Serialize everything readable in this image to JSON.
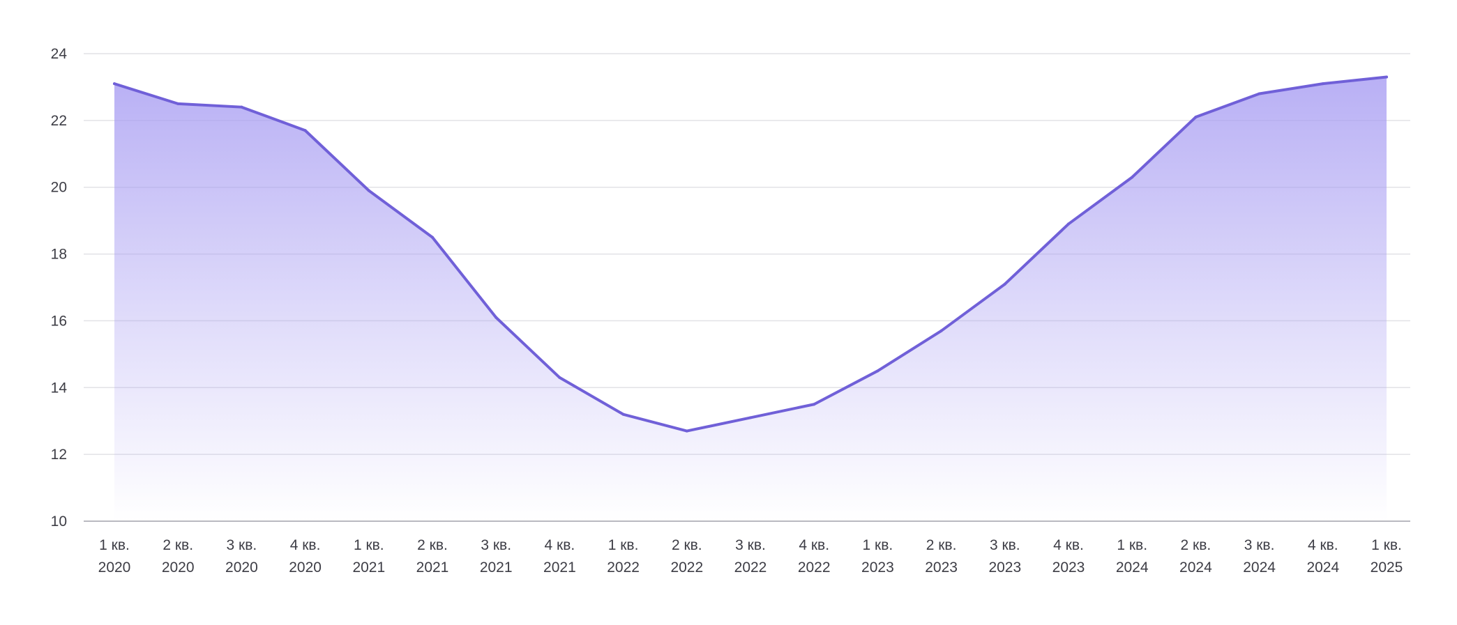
{
  "chart_data": {
    "type": "area",
    "title": "",
    "xlabel": "",
    "ylabel": "",
    "ylim": [
      10,
      24
    ],
    "yticks": [
      10,
      12,
      14,
      16,
      18,
      20,
      22,
      24
    ],
    "grid": true,
    "legend": "none",
    "categories": [
      {
        "quarter": "1 кв.",
        "year": "2020"
      },
      {
        "quarter": "2 кв.",
        "year": "2020"
      },
      {
        "quarter": "3 кв.",
        "year": "2020"
      },
      {
        "quarter": "4 кв.",
        "year": "2020"
      },
      {
        "quarter": "1 кв.",
        "year": "2021"
      },
      {
        "quarter": "2 кв.",
        "year": "2021"
      },
      {
        "quarter": "3 кв.",
        "year": "2021"
      },
      {
        "quarter": "4 кв.",
        "year": "2021"
      },
      {
        "quarter": "1 кв.",
        "year": "2022"
      },
      {
        "quarter": "2 кв.",
        "year": "2022"
      },
      {
        "quarter": "3 кв.",
        "year": "2022"
      },
      {
        "quarter": "4 кв.",
        "year": "2022"
      },
      {
        "quarter": "1 кв.",
        "year": "2023"
      },
      {
        "quarter": "2 кв.",
        "year": "2023"
      },
      {
        "quarter": "3 кв.",
        "year": "2023"
      },
      {
        "quarter": "4 кв.",
        "year": "2023"
      },
      {
        "quarter": "1 кв.",
        "year": "2024"
      },
      {
        "quarter": "2 кв.",
        "year": "2024"
      },
      {
        "quarter": "3 кв.",
        "year": "2024"
      },
      {
        "quarter": "4 кв.",
        "year": "2024"
      },
      {
        "quarter": "1 кв.",
        "year": "2025"
      }
    ],
    "series": [
      {
        "values": [
          23.1,
          22.5,
          22.4,
          21.7,
          19.9,
          18.5,
          16.1,
          14.3,
          13.2,
          12.7,
          13.1,
          13.5,
          14.5,
          15.7,
          17.1,
          18.9,
          20.3,
          22.1,
          22.8,
          23.1,
          23.3
        ],
        "color": "#7060d8",
        "fill_color": "#a79cf2"
      }
    ]
  }
}
